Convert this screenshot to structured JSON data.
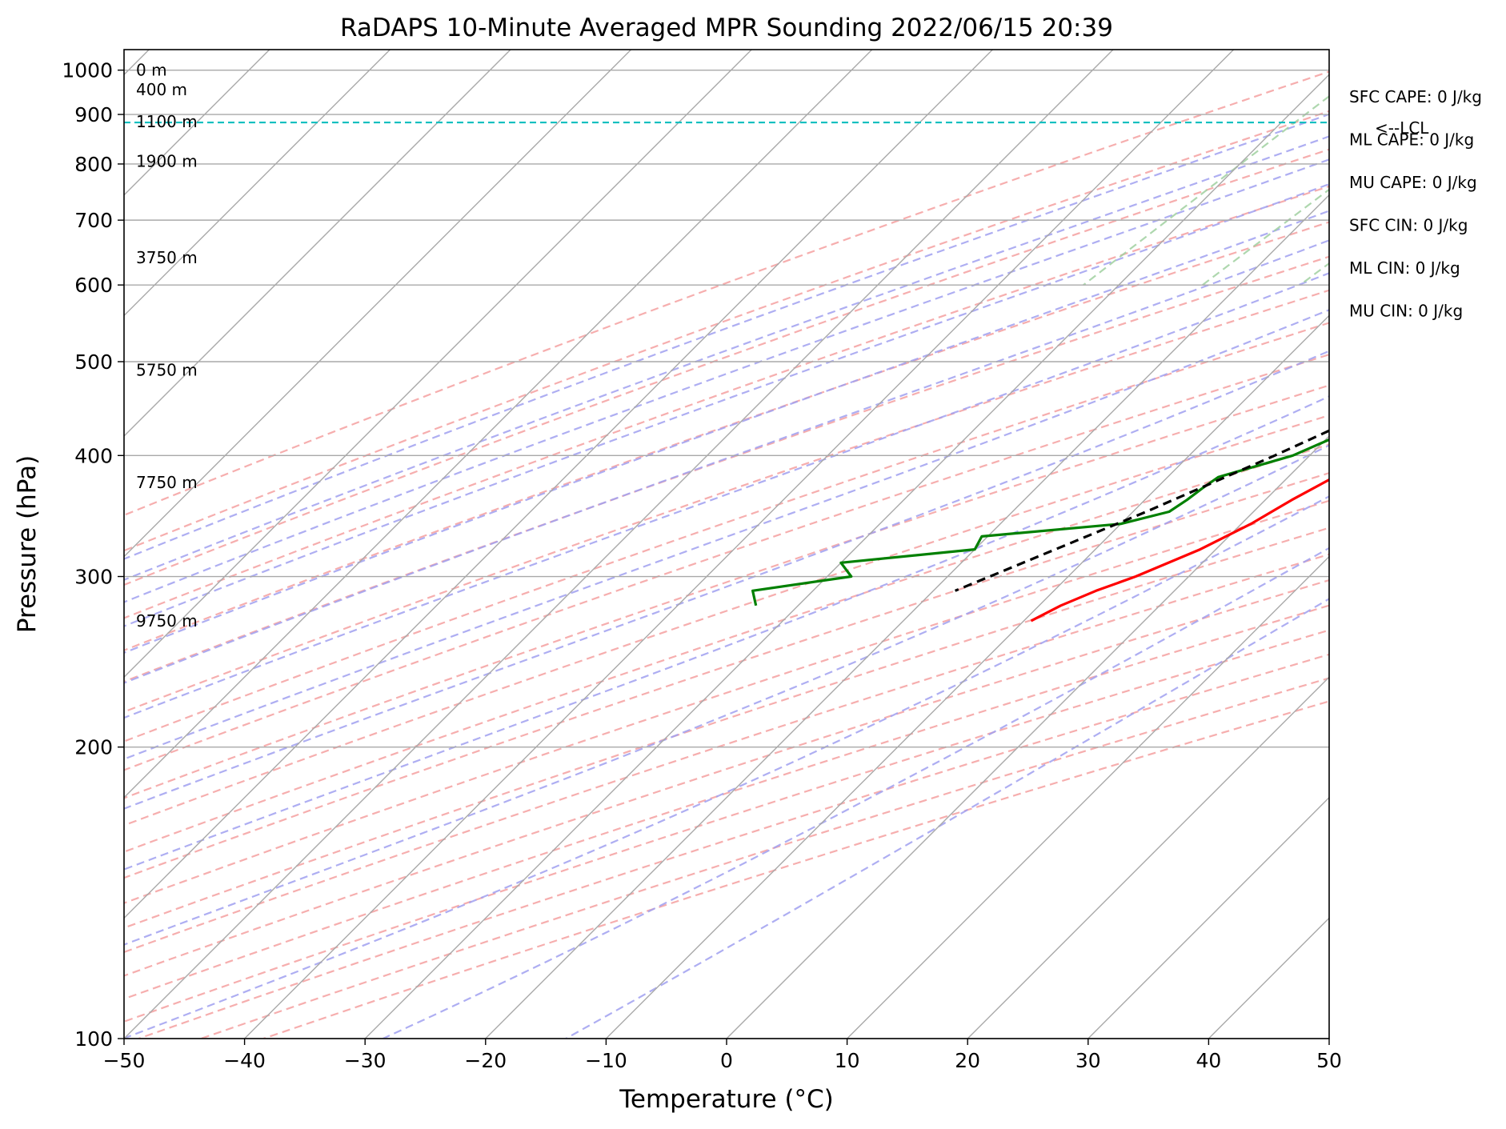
{
  "chart_data": {
    "type": "line",
    "diagram": "skew-T log-p",
    "title": "RaDAPS 10-Minute Averaged MPR Sounding 2022/06/15 20:39",
    "xlabel": "Temperature (°C)",
    "ylabel": "Pressure (hPa)",
    "xlim": [
      -50,
      50
    ],
    "ylim": [
      1050,
      100
    ],
    "y_scale": "log",
    "x_ticks": [
      -50,
      -40,
      -30,
      -20,
      -10,
      0,
      10,
      20,
      30,
      40,
      50
    ],
    "x_tick_labels": [
      "−50",
      "−40",
      "−30",
      "−20",
      "−10",
      "0",
      "10",
      "20",
      "30",
      "40",
      "50"
    ],
    "y_ticks": [
      1000,
      900,
      800,
      700,
      600,
      500,
      400,
      300,
      200,
      100
    ],
    "y_tick_labels": [
      "1000",
      "900",
      "800",
      "700",
      "600",
      "500",
      "400",
      "300",
      "200",
      "100"
    ],
    "grid": true,
    "colors": {
      "temperature": "#ff0000",
      "dewpoint": "#008000",
      "parcel": "#000000",
      "lcl": "#00bfbf",
      "isotherm": "#a9a9a9",
      "dry_adiabat": "#f4a0a0",
      "moist_adiabat": "#a0a0f0",
      "mixing_ratio": "#a0d0a0"
    },
    "series": [
      {
        "key": "temperature",
        "points": [
          [
            1000,
            31.5
          ],
          [
            980,
            29.5
          ],
          [
            960,
            29.0
          ],
          [
            940,
            27.0
          ],
          [
            920,
            26.0
          ],
          [
            900,
            26.5
          ],
          [
            880,
            25.0
          ],
          [
            860,
            25.2
          ],
          [
            840,
            24.6
          ],
          [
            820,
            24.5
          ],
          [
            800,
            24.4
          ],
          [
            780,
            23.5
          ],
          [
            760,
            22.3
          ],
          [
            740,
            22.8
          ],
          [
            720,
            22.9
          ],
          [
            700,
            22.0
          ],
          [
            680,
            19.8
          ],
          [
            660,
            18.6
          ],
          [
            640,
            17.5
          ],
          [
            620,
            17.8
          ],
          [
            600,
            16.8
          ],
          [
            580,
            16.2
          ],
          [
            560,
            15.5
          ],
          [
            540,
            14.7
          ],
          [
            520,
            13.4
          ],
          [
            500,
            12.5
          ],
          [
            480,
            11.4
          ],
          [
            460,
            10.4
          ],
          [
            440,
            9.3
          ],
          [
            420,
            7.7
          ],
          [
            400,
            5.7
          ],
          [
            380,
            3.8
          ],
          [
            360,
            2.2
          ],
          [
            340,
            0.8
          ],
          [
            320,
            -1.3
          ],
          [
            300,
            -4.4
          ],
          [
            290,
            -6.5
          ],
          [
            280,
            -8.2
          ],
          [
            270,
            -9.4
          ]
        ]
      },
      {
        "key": "dewpoint",
        "points": [
          [
            1000,
            24.0
          ],
          [
            995,
            29.0
          ],
          [
            985,
            28.5
          ],
          [
            970,
            25.0
          ],
          [
            955,
            22.5
          ],
          [
            940,
            20.5
          ],
          [
            925,
            23.0
          ],
          [
            910,
            25.7
          ],
          [
            895,
            25.8
          ],
          [
            880,
            24.5
          ],
          [
            860,
            24.3
          ],
          [
            840,
            24.5
          ],
          [
            820,
            23.0
          ],
          [
            800,
            21.5
          ],
          [
            780,
            19.8
          ],
          [
            760,
            18.7
          ],
          [
            740,
            16.8
          ],
          [
            720,
            15.7
          ],
          [
            700,
            15.1
          ],
          [
            680,
            13.5
          ],
          [
            660,
            12.2
          ],
          [
            640,
            10.3
          ],
          [
            620,
            10.0
          ],
          [
            600,
            8.5
          ],
          [
            580,
            8.2
          ],
          [
            560,
            8.0
          ],
          [
            540,
            7.5
          ],
          [
            520,
            6.2
          ],
          [
            500,
            3.0
          ],
          [
            480,
            3.5
          ],
          [
            460,
            2.8
          ],
          [
            440,
            1.5
          ],
          [
            420,
            0.8
          ],
          [
            400,
            -1.4
          ],
          [
            380,
            -5.8
          ],
          [
            370,
            -6.2
          ],
          [
            360,
            -6.5
          ],
          [
            350,
            -7.0
          ],
          [
            340,
            -10.0
          ],
          [
            330,
            -20.5
          ],
          [
            320,
            -20.0
          ],
          [
            310,
            -30.0
          ],
          [
            300,
            -28.0
          ],
          [
            290,
            -35.0
          ],
          [
            280,
            -33.5
          ]
        ]
      },
      {
        "key": "parcel",
        "points": [
          [
            1000,
            32.0
          ],
          [
            960,
            28.6
          ],
          [
            920,
            25.9
          ],
          [
            900,
            24.5
          ],
          [
            880,
            24.1
          ],
          [
            850,
            23.2
          ],
          [
            800,
            21.5
          ],
          [
            750,
            19.6
          ],
          [
            700,
            17.5
          ],
          [
            650,
            15.2
          ],
          [
            600,
            12.6
          ],
          [
            550,
            9.6
          ],
          [
            500,
            6.1
          ],
          [
            450,
            2.0
          ],
          [
            400,
            -2.9
          ],
          [
            350,
            -8.9
          ],
          [
            300,
            -16.5
          ],
          [
            290,
            -18.2
          ]
        ]
      }
    ],
    "lcl": {
      "pressure": 883,
      "label": "<--LCL"
    },
    "height_labels": [
      {
        "pressure": 1000,
        "text": "0 m"
      },
      {
        "pressure": 955,
        "text": "400 m"
      },
      {
        "pressure": 885,
        "text": "1100 m"
      },
      {
        "pressure": 805,
        "text": "1900 m"
      },
      {
        "pressure": 640,
        "text": "3750 m"
      },
      {
        "pressure": 490,
        "text": "5750 m"
      },
      {
        "pressure": 375,
        "text": "7750 m"
      },
      {
        "pressure": 270,
        "text": "9750 m"
      }
    ],
    "indices": [
      "SFC CAPE: 0 J/kg",
      "ML CAPE: 0 J/kg",
      "MU CAPE: 0 J/kg",
      "SFC CIN: 0 J/kg",
      "ML CIN: 0 J/kg",
      "MU CIN: 0 J/kg"
    ]
  }
}
